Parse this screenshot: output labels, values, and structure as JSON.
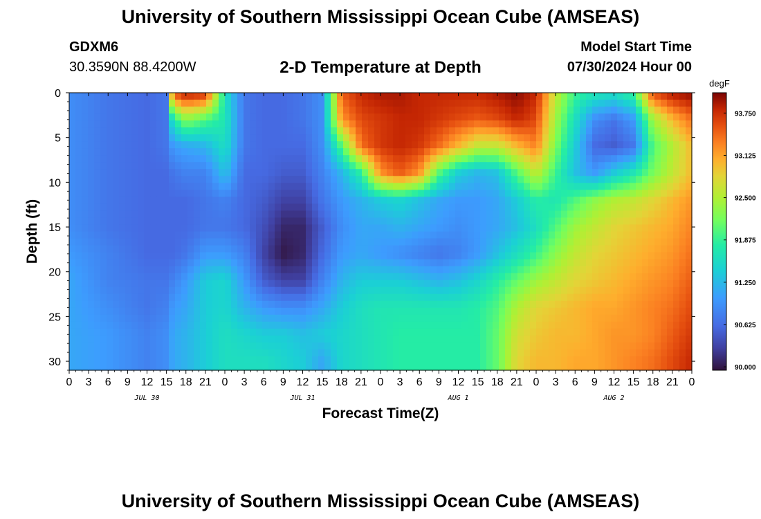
{
  "header": {
    "title": "University of Southern Mississippi Ocean Cube (AMSEAS)",
    "station": "GDXM6",
    "coordinates": "30.3590N  88.4200W",
    "subtitle": "2-D Temperature at Depth",
    "start_label": "Model Start Time",
    "start_value": "07/30/2024 Hour 00"
  },
  "footer": {
    "title": "University of Southern Mississippi Ocean Cube (AMSEAS)"
  },
  "chart_data": {
    "type": "heatmap",
    "title": "2-D Temperature at Depth",
    "xlabel": "Forecast Time(Z)",
    "ylabel": "Depth (ft)",
    "x_hours_range": [
      0,
      96
    ],
    "x_tick_labels": [
      "0",
      "3",
      "6",
      "9",
      "12",
      "15",
      "18",
      "21",
      "0",
      "3",
      "6",
      "9",
      "12",
      "15",
      "18",
      "21",
      "0",
      "3",
      "6",
      "9",
      "12",
      "15",
      "18",
      "21",
      "0",
      "3",
      "6",
      "9",
      "12",
      "15",
      "18",
      "21",
      "0"
    ],
    "date_labels": [
      {
        "label": "JUL 30",
        "hour": 12
      },
      {
        "label": "JUL 31",
        "hour": 36
      },
      {
        "label": "AUG 1",
        "hour": 60
      },
      {
        "label": "AUG 2",
        "hour": 84
      }
    ],
    "y_range": [
      0,
      31
    ],
    "y_ticks": [
      0,
      5,
      10,
      15,
      20,
      25,
      30
    ],
    "colorbar": {
      "units": "degF",
      "range": [
        89.95,
        94.05
      ],
      "ticks": [
        "93.750",
        "93.125",
        "92.500",
        "91.875",
        "91.250",
        "90.625",
        "90.000"
      ]
    },
    "depths_ft": [
      0,
      3,
      6,
      9,
      12,
      15,
      18,
      21,
      24,
      27,
      30
    ],
    "hours": [
      0,
      6,
      12,
      15,
      16,
      18,
      21,
      24,
      27,
      30,
      33,
      36,
      39,
      42,
      45,
      48,
      51,
      54,
      57,
      60,
      63,
      66,
      69,
      72,
      75,
      78,
      81,
      84,
      87,
      90,
      93,
      96
    ],
    "values_degF": [
      [
        90.9,
        90.7,
        90.6,
        90.7,
        93.6,
        93.9,
        93.8,
        91.6,
        90.7,
        90.6,
        90.6,
        90.7,
        90.9,
        93.5,
        93.8,
        93.9,
        93.9,
        93.8,
        93.8,
        93.8,
        93.8,
        93.9,
        94.0,
        93.8,
        92.6,
        91.9,
        91.7,
        91.6,
        91.9,
        93.6,
        93.9,
        94.0
      ],
      [
        90.9,
        90.7,
        90.6,
        90.7,
        91.7,
        92.3,
        92.0,
        91.7,
        90.7,
        90.6,
        90.6,
        90.7,
        90.9,
        93.2,
        93.6,
        93.7,
        93.8,
        93.8,
        93.7,
        93.6,
        93.5,
        93.6,
        93.8,
        93.6,
        92.4,
        91.6,
        90.9,
        90.7,
        91.0,
        92.4,
        93.0,
        93.4
      ],
      [
        90.9,
        90.7,
        90.6,
        90.7,
        91.0,
        91.1,
        91.2,
        91.6,
        90.7,
        90.6,
        90.6,
        90.6,
        90.9,
        92.0,
        93.4,
        93.7,
        93.8,
        93.7,
        93.4,
        93.0,
        92.6,
        92.6,
        93.0,
        93.3,
        92.2,
        91.4,
        90.6,
        90.5,
        90.7,
        92.0,
        92.5,
        93.0
      ],
      [
        90.9,
        90.7,
        90.6,
        90.6,
        90.7,
        90.8,
        90.8,
        91.3,
        90.6,
        90.6,
        90.5,
        90.5,
        90.8,
        91.2,
        91.8,
        93.2,
        93.5,
        93.2,
        92.0,
        91.4,
        91.2,
        91.3,
        92.0,
        92.6,
        91.9,
        91.3,
        91.0,
        91.4,
        91.7,
        92.2,
        92.6,
        93.0
      ],
      [
        90.9,
        90.7,
        90.6,
        90.6,
        90.6,
        90.6,
        90.7,
        90.8,
        90.6,
        90.5,
        90.3,
        90.3,
        90.7,
        91.0,
        91.2,
        91.4,
        91.5,
        91.3,
        91.1,
        91.0,
        91.0,
        91.1,
        91.4,
        91.8,
        91.7,
        92.0,
        92.3,
        92.5,
        92.6,
        92.8,
        93.0,
        93.2
      ],
      [
        90.9,
        90.7,
        90.6,
        90.6,
        90.6,
        90.6,
        90.7,
        90.7,
        90.6,
        90.4,
        90.1,
        90.1,
        90.5,
        90.9,
        91.1,
        91.1,
        91.2,
        91.1,
        91.0,
        90.9,
        91.0,
        91.1,
        91.3,
        91.6,
        92.0,
        92.4,
        92.6,
        92.8,
        92.9,
        93.0,
        93.1,
        93.3
      ],
      [
        91.0,
        90.8,
        90.6,
        90.6,
        90.6,
        90.7,
        91.0,
        91.0,
        90.8,
        90.3,
        90.0,
        90.1,
        90.6,
        91.0,
        91.1,
        91.0,
        90.9,
        90.8,
        90.7,
        90.8,
        91.0,
        91.3,
        91.6,
        91.9,
        92.3,
        92.6,
        92.8,
        92.9,
        93.0,
        93.1,
        93.2,
        93.4
      ],
      [
        91.1,
        90.8,
        90.7,
        90.7,
        90.8,
        91.0,
        91.4,
        91.5,
        91.0,
        90.5,
        90.3,
        90.3,
        90.8,
        91.2,
        91.4,
        91.4,
        91.4,
        91.3,
        91.2,
        91.3,
        91.5,
        91.8,
        92.1,
        92.4,
        92.6,
        92.8,
        92.9,
        93.0,
        93.1,
        93.2,
        93.3,
        93.5
      ],
      [
        91.1,
        90.9,
        90.7,
        90.8,
        91.0,
        91.1,
        91.4,
        91.5,
        91.2,
        91.0,
        90.9,
        90.9,
        91.1,
        91.4,
        91.6,
        91.7,
        91.7,
        91.7,
        91.7,
        91.7,
        91.8,
        92.0,
        92.5,
        92.8,
        92.9,
        93.0,
        93.1,
        93.1,
        93.2,
        93.3,
        93.4,
        93.6
      ],
      [
        91.1,
        91.0,
        90.8,
        90.9,
        91.1,
        91.2,
        91.4,
        91.6,
        91.5,
        91.4,
        91.4,
        91.3,
        91.4,
        91.5,
        91.6,
        91.7,
        91.8,
        91.8,
        91.8,
        91.8,
        91.8,
        92.1,
        92.7,
        92.9,
        93.0,
        93.0,
        93.1,
        93.2,
        93.2,
        93.3,
        93.5,
        93.7
      ],
      [
        91.1,
        91.0,
        90.8,
        90.9,
        91.1,
        91.2,
        91.4,
        91.6,
        91.6,
        91.6,
        91.5,
        91.4,
        91.1,
        91.5,
        91.6,
        91.7,
        91.8,
        91.8,
        91.8,
        91.8,
        91.8,
        92.1,
        92.8,
        93.0,
        93.0,
        93.1,
        93.1,
        93.2,
        93.3,
        93.4,
        93.6,
        93.8
      ]
    ]
  }
}
